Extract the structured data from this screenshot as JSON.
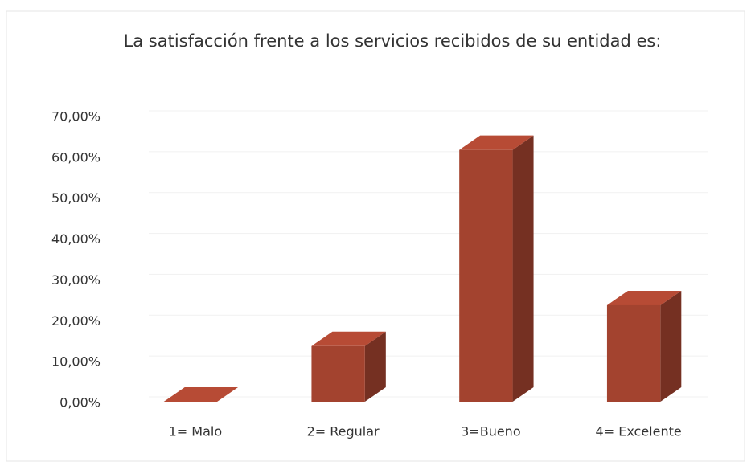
{
  "chart_data": {
    "type": "bar3d",
    "title": "La satisfacción frente a los servicios recibidos de su entidad es:",
    "categories": [
      "1= Malo",
      "2= Regular",
      "3=Bueno",
      "4= Excelente"
    ],
    "values": [
      0,
      14,
      62,
      24
    ],
    "color": "#a3432f",
    "ylim": [
      0,
      70
    ],
    "yticks": [
      {
        "value": 0,
        "label": "0,00%"
      },
      {
        "value": 10,
        "label": "10,00%"
      },
      {
        "value": 20,
        "label": "20,00%"
      },
      {
        "value": 30,
        "label": "30,00%"
      },
      {
        "value": 40,
        "label": "40,00%"
      },
      {
        "value": 50,
        "label": "50,00%"
      },
      {
        "value": 60,
        "label": "60,00%"
      },
      {
        "value": 70,
        "label": "70,00%"
      }
    ],
    "grid": true
  }
}
